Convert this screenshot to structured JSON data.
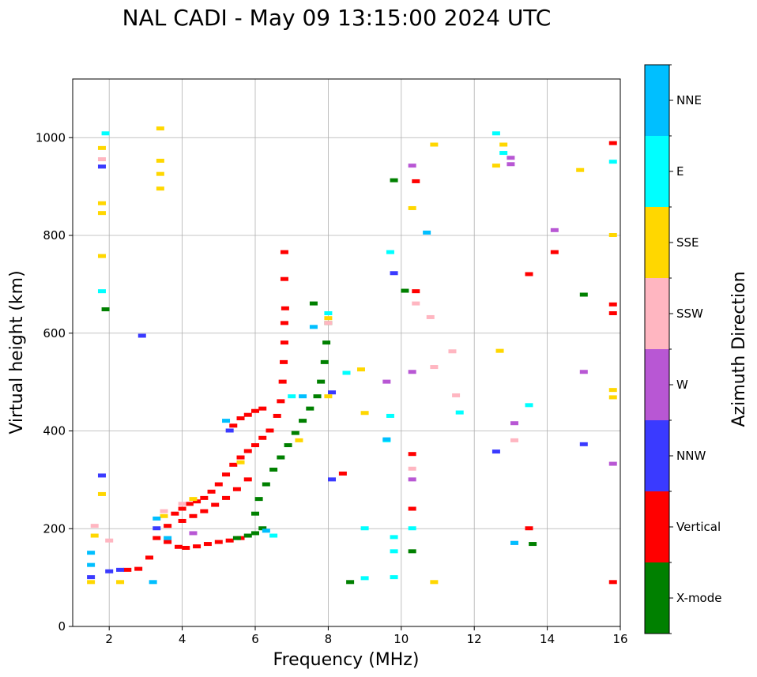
{
  "chart_data": {
    "type": "scatter",
    "title": "NAL CADI - May 09 13:15:00 2024 UTC",
    "xlabel": "Frequency (MHz)",
    "ylabel": "Virtual height (km)",
    "xlim": [
      1,
      16
    ],
    "ylim": [
      0,
      1120
    ],
    "xticks": [
      2,
      4,
      6,
      8,
      10,
      12,
      14,
      16
    ],
    "yticks": [
      0,
      200,
      400,
      600,
      800,
      1000
    ],
    "grid": true,
    "colorbar": {
      "label": "Azimuth Direction",
      "categories": [
        "X-mode",
        "Vertical",
        "NNW",
        "W",
        "SSW",
        "SSE",
        "E",
        "NNE"
      ],
      "colors": [
        "#008000",
        "#ff0000",
        "#3a3aff",
        "#b857d4",
        "#ffb6c1",
        "#ffd700",
        "#00ffff",
        "#00bfff"
      ]
    },
    "series": [
      {
        "name": "Vertical",
        "points": [
          [
            2.5,
            115
          ],
          [
            2.8,
            117
          ],
          [
            3.1,
            140
          ],
          [
            3.3,
            180
          ],
          [
            3.6,
            205
          ],
          [
            3.8,
            230
          ],
          [
            4.0,
            240
          ],
          [
            4.2,
            250
          ],
          [
            4.4,
            255
          ],
          [
            4.6,
            262
          ],
          [
            4.8,
            275
          ],
          [
            5.0,
            290
          ],
          [
            5.2,
            310
          ],
          [
            5.4,
            330
          ],
          [
            5.6,
            345
          ],
          [
            5.8,
            358
          ],
          [
            6.0,
            370
          ],
          [
            6.2,
            385
          ],
          [
            6.4,
            400
          ],
          [
            6.6,
            430
          ],
          [
            6.7,
            460
          ],
          [
            6.75,
            500
          ],
          [
            6.78,
            540
          ],
          [
            6.8,
            580
          ],
          [
            6.8,
            620
          ],
          [
            6.82,
            650
          ],
          [
            6.8,
            710
          ],
          [
            6.8,
            765
          ],
          [
            3.6,
            172
          ],
          [
            3.9,
            162
          ],
          [
            4.1,
            160
          ],
          [
            4.4,
            163
          ],
          [
            4.7,
            168
          ],
          [
            5.0,
            172
          ],
          [
            5.3,
            175
          ],
          [
            5.6,
            180
          ],
          [
            4.0,
            215
          ],
          [
            4.3,
            225
          ],
          [
            4.6,
            235
          ],
          [
            4.9,
            248
          ],
          [
            5.2,
            262
          ],
          [
            5.5,
            280
          ],
          [
            5.8,
            300
          ],
          [
            5.4,
            410
          ],
          [
            5.6,
            425
          ],
          [
            5.8,
            432
          ],
          [
            6.0,
            440
          ],
          [
            6.2,
            445
          ],
          [
            8.4,
            312
          ],
          [
            10.3,
            352
          ],
          [
            10.3,
            240
          ],
          [
            10.4,
            910
          ],
          [
            10.4,
            685
          ],
          [
            13.5,
            720
          ],
          [
            14.2,
            765
          ],
          [
            13.5,
            200
          ],
          [
            15.8,
            988
          ],
          [
            15.8,
            658
          ],
          [
            15.8,
            640
          ],
          [
            15.8,
            90
          ]
        ]
      },
      {
        "name": "X-mode",
        "points": [
          [
            5.5,
            180
          ],
          [
            5.8,
            185
          ],
          [
            6.0,
            190
          ],
          [
            6.2,
            200
          ],
          [
            6.0,
            230
          ],
          [
            6.1,
            260
          ],
          [
            6.3,
            290
          ],
          [
            6.5,
            320
          ],
          [
            6.7,
            345
          ],
          [
            6.9,
            370
          ],
          [
            7.1,
            395
          ],
          [
            7.3,
            420
          ],
          [
            7.5,
            445
          ],
          [
            7.7,
            470
          ],
          [
            7.8,
            500
          ],
          [
            7.9,
            540
          ],
          [
            7.95,
            580
          ],
          [
            8.0,
            620
          ],
          [
            7.6,
            660
          ],
          [
            8.6,
            90
          ],
          [
            9.8,
            912
          ],
          [
            10.1,
            686
          ],
          [
            10.3,
            153
          ],
          [
            13.6,
            168
          ],
          [
            15.0,
            678
          ],
          [
            1.9,
            648
          ]
        ]
      },
      {
        "name": "NNW",
        "points": [
          [
            1.5,
            100
          ],
          [
            2.0,
            112
          ],
          [
            2.3,
            115
          ],
          [
            3.3,
            200
          ],
          [
            5.3,
            400
          ],
          [
            8.1,
            300
          ],
          [
            8.1,
            478
          ],
          [
            9.8,
            722
          ],
          [
            12.6,
            357
          ],
          [
            15.0,
            372
          ],
          [
            1.8,
            940
          ],
          [
            1.8,
            308
          ],
          [
            2.9,
            594
          ]
        ]
      },
      {
        "name": "W",
        "points": [
          [
            4.3,
            190
          ],
          [
            13.1,
            415
          ],
          [
            15.0,
            520
          ],
          [
            10.3,
            520
          ],
          [
            10.3,
            300
          ],
          [
            13.1,
            170
          ],
          [
            15.8,
            332
          ],
          [
            10.3,
            942
          ],
          [
            13.0,
            945
          ],
          [
            13.0,
            958
          ],
          [
            14.2,
            810
          ],
          [
            9.6,
            500
          ]
        ]
      },
      {
        "name": "SSW",
        "points": [
          [
            1.6,
            205
          ],
          [
            3.5,
            235
          ],
          [
            4.0,
            250
          ],
          [
            8.0,
            620
          ],
          [
            10.8,
            632
          ],
          [
            10.9,
            530
          ],
          [
            11.4,
            562
          ],
          [
            11.5,
            472
          ],
          [
            13.1,
            380
          ],
          [
            10.3,
            322
          ],
          [
            10.4,
            660
          ],
          [
            1.8,
            955
          ],
          [
            2.0,
            175
          ]
        ]
      },
      {
        "name": "SSE",
        "points": [
          [
            1.5,
            90
          ],
          [
            2.3,
            90
          ],
          [
            3.5,
            225
          ],
          [
            4.3,
            260
          ],
          [
            5.6,
            335
          ],
          [
            7.2,
            380
          ],
          [
            8.0,
            630
          ],
          [
            8.0,
            470
          ],
          [
            8.9,
            525
          ],
          [
            9.0,
            436
          ],
          [
            10.3,
            855
          ],
          [
            10.9,
            985
          ],
          [
            10.9,
            90
          ],
          [
            12.6,
            942
          ],
          [
            12.7,
            563
          ],
          [
            12.8,
            985
          ],
          [
            14.9,
            933
          ],
          [
            15.8,
            800
          ],
          [
            15.8,
            483
          ],
          [
            15.8,
            468
          ],
          [
            3.4,
            895
          ],
          [
            3.4,
            925
          ],
          [
            3.4,
            952
          ],
          [
            3.4,
            1018
          ],
          [
            1.8,
            978
          ],
          [
            1.8,
            865
          ],
          [
            1.8,
            845
          ],
          [
            1.8,
            757
          ],
          [
            1.6,
            185
          ],
          [
            1.8,
            270
          ]
        ]
      },
      {
        "name": "E",
        "points": [
          [
            6.5,
            185
          ],
          [
            7.0,
            470
          ],
          [
            8.0,
            640
          ],
          [
            8.5,
            518
          ],
          [
            9.0,
            200
          ],
          [
            9.0,
            98
          ],
          [
            9.6,
            380
          ],
          [
            9.7,
            430
          ],
          [
            9.7,
            765
          ],
          [
            9.8,
            182
          ],
          [
            9.8,
            153
          ],
          [
            9.8,
            100
          ],
          [
            10.3,
            200
          ],
          [
            11.6,
            437
          ],
          [
            12.6,
            1008
          ],
          [
            12.8,
            968
          ],
          [
            13.5,
            452
          ],
          [
            15.8,
            950
          ],
          [
            1.9,
            1008
          ],
          [
            1.8,
            685
          ]
        ]
      },
      {
        "name": "NNE",
        "points": [
          [
            1.5,
            150
          ],
          [
            1.5,
            125
          ],
          [
            3.3,
            220
          ],
          [
            3.6,
            180
          ],
          [
            5.2,
            420
          ],
          [
            6.3,
            195
          ],
          [
            7.3,
            470
          ],
          [
            7.6,
            612
          ],
          [
            9.6,
            382
          ],
          [
            10.7,
            805
          ],
          [
            13.1,
            170
          ],
          [
            3.2,
            90
          ]
        ]
      }
    ]
  }
}
